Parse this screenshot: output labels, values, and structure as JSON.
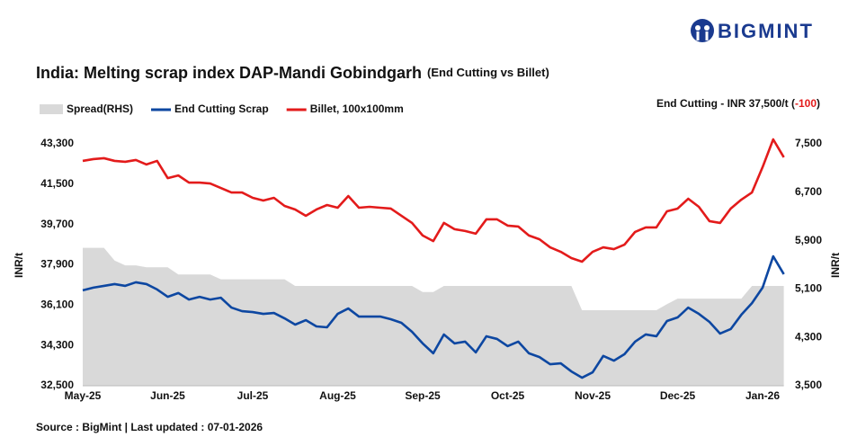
{
  "chart_data": {
    "type": "line",
    "logo": "BIGMINT",
    "title": "India: Melting scrap index DAP-Mandi Gobindgarh",
    "subtitle": "(End Cutting vs Billet)",
    "annotation_prefix": "End Cutting - INR 37,500/t (",
    "annotation_change": "-100",
    "annotation_suffix": ")",
    "annotation_change_color": "#e31b1b",
    "ylabel": "INR/t",
    "y2label": "INR/t",
    "source": "Source : BigMint | Last updated : 07-01-2026",
    "categories": [
      "May-25",
      null,
      null,
      null,
      null,
      null,
      null,
      null,
      "Jun-25",
      null,
      null,
      null,
      null,
      null,
      null,
      null,
      "Jul-25",
      null,
      null,
      null,
      null,
      null,
      null,
      null,
      "Aug-25",
      null,
      null,
      null,
      null,
      null,
      null,
      null,
      "Sep-25",
      null,
      null,
      null,
      null,
      null,
      null,
      null,
      "Oct-25",
      null,
      null,
      null,
      null,
      null,
      null,
      null,
      "Nov-25",
      null,
      null,
      null,
      null,
      null,
      null,
      null,
      "Dec-25",
      null,
      null,
      null,
      null,
      null,
      null,
      null,
      "Jan-26",
      null,
      null
    ],
    "series": [
      {
        "name": "Spread(RHS)",
        "color": "#d9d9d9",
        "style": "area",
        "axis": "y2",
        "values": [
          5780,
          5780,
          5780,
          5570,
          5490,
          5490,
          5460,
          5460,
          5460,
          5340,
          5340,
          5340,
          5340,
          5260,
          5260,
          5260,
          5260,
          5260,
          5260,
          5260,
          5150,
          5150,
          5150,
          5150,
          5150,
          5150,
          5150,
          5150,
          5150,
          5150,
          5150,
          5150,
          5050,
          5050,
          5150,
          5150,
          5150,
          5150,
          5150,
          5150,
          5150,
          5150,
          5150,
          5150,
          5150,
          5150,
          5150,
          4750,
          4750,
          4750,
          4750,
          4750,
          4750,
          4750,
          4750,
          4850,
          4940,
          4940,
          4940,
          4940,
          4940,
          4940,
          4940,
          5150,
          5150,
          5150,
          5150
        ]
      },
      {
        "name": "End Cutting Scrap",
        "color": "#0d47a1",
        "style": "line",
        "values": [
          36760,
          36880,
          36960,
          37040,
          36960,
          37120,
          37040,
          36800,
          36470,
          36640,
          36350,
          36470,
          36350,
          36430,
          35990,
          35830,
          35790,
          35710,
          35750,
          35510,
          35230,
          35430,
          35150,
          35110,
          35710,
          35950,
          35590,
          35590,
          35590,
          35470,
          35310,
          34910,
          34390,
          33950,
          34790,
          34390,
          34470,
          33990,
          34710,
          34590,
          34270,
          34470,
          33950,
          33780,
          33460,
          33500,
          33140,
          32860,
          33100,
          33830,
          33620,
          33910,
          34470,
          34790,
          34710,
          35390,
          35550,
          35990,
          35710,
          35350,
          34830,
          35030,
          35670,
          36190,
          36880,
          38280,
          37480
        ]
      },
      {
        "name": "Billet, 100x100mm",
        "color": "#e31b1b",
        "style": "line",
        "values": [
          42540,
          42620,
          42660,
          42540,
          42500,
          42580,
          42380,
          42540,
          41770,
          41890,
          41570,
          41570,
          41530,
          41330,
          41130,
          41130,
          40890,
          40770,
          40890,
          40530,
          40370,
          40090,
          40370,
          40570,
          40450,
          40970,
          40450,
          40490,
          40450,
          40410,
          40090,
          39770,
          39210,
          38960,
          39770,
          39490,
          39410,
          39290,
          39930,
          39930,
          39650,
          39610,
          39210,
          39040,
          38680,
          38480,
          38200,
          38040,
          38480,
          38680,
          38600,
          38800,
          39370,
          39570,
          39570,
          40290,
          40410,
          40850,
          40490,
          39850,
          39770,
          40410,
          40810,
          41130,
          42260,
          43500,
          42700
        ]
      }
    ],
    "ylim": [
      32500,
      43840
    ],
    "yticks": [
      {
        "value": 32500,
        "label": "32,500"
      },
      {
        "value": 34300,
        "label": "34,300"
      },
      {
        "value": 36100,
        "label": "36,100"
      },
      {
        "value": 37900,
        "label": "37,900"
      },
      {
        "value": 39700,
        "label": "39,700"
      },
      {
        "value": 41500,
        "label": "41,500"
      },
      {
        "value": 43300,
        "label": "43,300"
      }
    ],
    "y2lim": [
      3500,
      7700
    ],
    "y2ticks": [
      {
        "value": 3500,
        "label": "3,500"
      },
      {
        "value": 4300,
        "label": "4,300"
      },
      {
        "value": 5100,
        "label": "5,100"
      },
      {
        "value": 5900,
        "label": "5,900"
      },
      {
        "value": 6700,
        "label": "6,700"
      },
      {
        "value": 7500,
        "label": "7,500"
      }
    ]
  }
}
